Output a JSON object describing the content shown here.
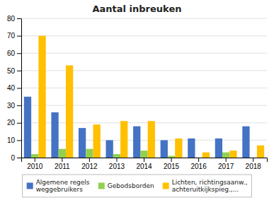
{
  "chart_data": {
    "type": "bar",
    "title": "Aantal inbreuken",
    "categories": [
      "2010",
      "2011",
      "2012",
      "2013",
      "2014",
      "2015",
      "2016",
      "2017",
      "2018"
    ],
    "series": [
      {
        "name": "Algemene regels\nweggebruikers",
        "color": "#4472C4",
        "values": [
          35,
          26,
          17,
          10,
          18,
          10,
          11,
          11,
          18
        ]
      },
      {
        "name": "Gebodsborden",
        "color": "#92D050",
        "values": [
          2,
          5,
          5,
          2,
          4,
          1,
          0,
          3,
          0
        ]
      },
      {
        "name": "Lichten, richtingsaanw.,\nachteruitkijkspieg.,...",
        "color": "#FFC000",
        "values": [
          70,
          53,
          19,
          21,
          21,
          11,
          3,
          4,
          7
        ]
      }
    ],
    "ylim": [
      0,
      80
    ],
    "yticks": [
      0,
      10,
      20,
      30,
      40,
      50,
      60,
      70,
      80
    ],
    "grid": true,
    "legend": "bottom"
  }
}
